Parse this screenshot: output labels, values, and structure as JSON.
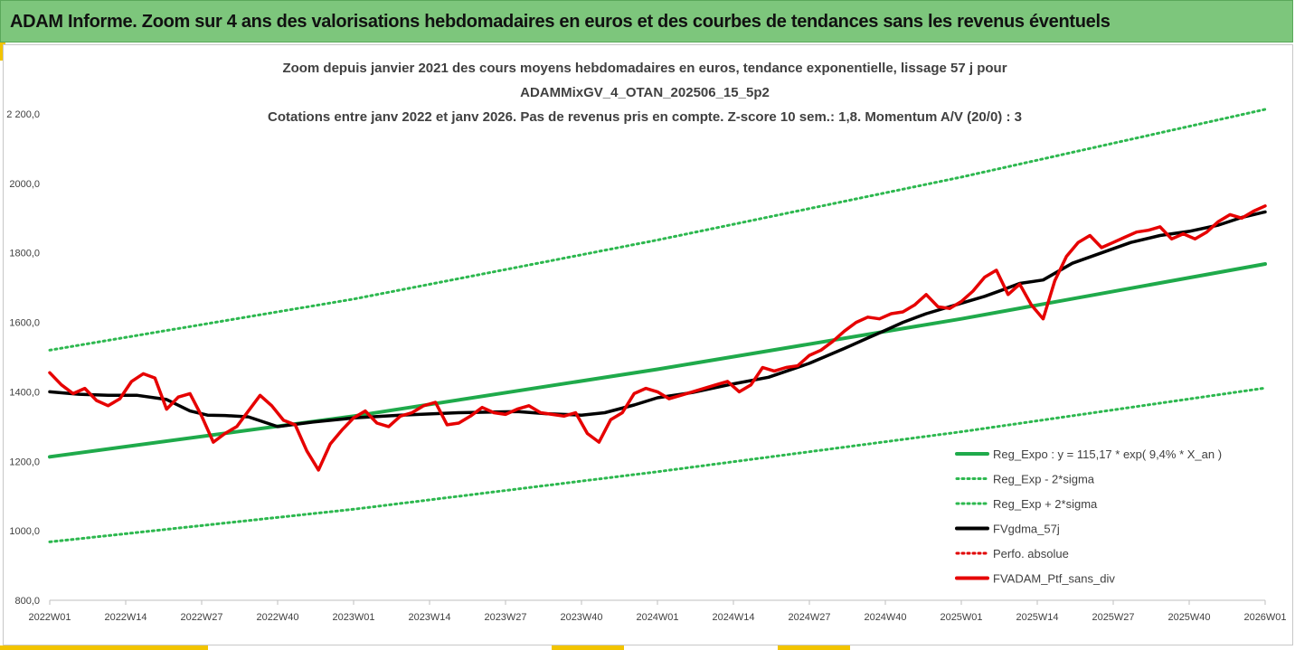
{
  "header": {
    "title": "ADAM Informe. Zoom sur 4 ans des valorisations hebdomadaires en euros et des courbes de tendances sans les revenus éventuels"
  },
  "colors": {
    "header_bg": "#7dc67c",
    "accent": "#f2c400",
    "reg_expo": "#1faa4b",
    "bands": "#2db84f",
    "fvgdma": "#000000",
    "perfo": "#e00000",
    "ptf": "#e60000"
  },
  "chart_data": {
    "type": "line",
    "title_lines": [
      "Zoom depuis janvier 2021 des cours moyens hebdomadaires  en euros, tendance exponentielle, lissage 57 j pour",
      "ADAMMixGV_4_OTAN_202506_15_5p2",
      "Cotations entre janv 2022 et janv 2026. Pas de revenus pris en compte. Z-score 10 sem.: 1,8. Momentum A/V (20/0) : 3"
    ],
    "xlabel": "",
    "ylabel": "",
    "ylim": [
      800,
      2200
    ],
    "yticks": [
      800,
      1000,
      1200,
      1400,
      1600,
      1800,
      2000,
      2200
    ],
    "ytick_labels": [
      "800,0",
      "1000,0",
      "1200,0",
      "1400,0",
      "1600,0",
      "1800,0",
      "2000,0",
      "2 200,0"
    ],
    "xlim": [
      0,
      208
    ],
    "xticks": [
      0,
      13,
      26,
      39,
      52,
      65,
      78,
      91,
      104,
      117,
      130,
      143,
      156,
      169,
      182,
      195,
      208
    ],
    "xtick_labels": [
      "2022W01",
      "2022W14",
      "2022W27",
      "2022W40",
      "2023W01",
      "2023W14",
      "2023W27",
      "2023W40",
      "2024W01",
      "2024W14",
      "2024W27",
      "2024W40",
      "2025W01",
      "2025W14",
      "2025W27",
      "2025W40",
      "2026W01"
    ],
    "legend_position": "bottom-right",
    "series": [
      {
        "name": "Reg_Expo : y = 115,17 * exp( 9,4% *  X_an )",
        "style": "solid-thick",
        "x": [
          0,
          52,
          104,
          156,
          208
        ],
        "values": [
          1213,
          1330,
          1465,
          1610,
          1768
        ]
      },
      {
        "name": "Reg_Exp - 2*sigma",
        "style": "dotted",
        "x": [
          0,
          52,
          104,
          156,
          208
        ],
        "values": [
          968,
          1062,
          1170,
          1285,
          1411
        ]
      },
      {
        "name": "Reg_Exp + 2*sigma",
        "style": "dotted",
        "x": [
          0,
          52,
          104,
          156,
          208
        ],
        "values": [
          1520,
          1667,
          1837,
          2018,
          2213
        ]
      },
      {
        "name": "FVgdma_57j",
        "style": "solid-thick",
        "x": [
          0,
          5,
          10,
          15,
          20,
          24,
          27,
          30,
          34,
          39,
          45,
          52,
          60,
          70,
          80,
          85,
          91,
          95,
          100,
          104,
          110,
          117,
          123,
          130,
          136,
          140,
          143,
          146,
          150,
          156,
          160,
          163,
          166,
          170,
          175,
          180,
          185,
          190,
          195,
          200,
          204,
          208
        ],
        "values": [
          1400,
          1393,
          1390,
          1390,
          1378,
          1345,
          1333,
          1332,
          1328,
          1300,
          1313,
          1325,
          1333,
          1340,
          1343,
          1337,
          1333,
          1340,
          1362,
          1383,
          1398,
          1423,
          1442,
          1482,
          1525,
          1555,
          1577,
          1600,
          1625,
          1655,
          1675,
          1693,
          1712,
          1722,
          1770,
          1800,
          1830,
          1850,
          1862,
          1880,
          1902,
          1918
        ]
      },
      {
        "name": "Perfo. absolue",
        "style": "dotted",
        "x": [],
        "values": []
      },
      {
        "name": "FVADAM_Ptf_sans_div",
        "style": "solid-thick",
        "x": [
          0,
          2,
          4,
          6,
          8,
          10,
          12,
          14,
          16,
          18,
          20,
          22,
          24,
          26,
          28,
          30,
          32,
          34,
          36,
          38,
          40,
          42,
          44,
          46,
          48,
          50,
          52,
          54,
          56,
          58,
          60,
          62,
          64,
          66,
          68,
          70,
          72,
          74,
          76,
          78,
          80,
          82,
          84,
          86,
          88,
          90,
          92,
          94,
          96,
          98,
          100,
          102,
          104,
          106,
          108,
          110,
          112,
          114,
          116,
          118,
          120,
          122,
          124,
          126,
          128,
          130,
          132,
          134,
          136,
          138,
          140,
          142,
          144,
          146,
          148,
          150,
          152,
          154,
          156,
          158,
          160,
          162,
          164,
          166,
          168,
          170,
          172,
          174,
          176,
          178,
          180,
          182,
          184,
          186,
          188,
          190,
          192,
          194,
          196,
          198,
          200,
          202,
          204,
          206,
          208
        ],
        "values": [
          1455,
          1420,
          1395,
          1410,
          1375,
          1360,
          1380,
          1430,
          1452,
          1440,
          1350,
          1385,
          1395,
          1330,
          1255,
          1280,
          1300,
          1345,
          1390,
          1360,
          1318,
          1305,
          1230,
          1175,
          1250,
          1290,
          1325,
          1345,
          1310,
          1300,
          1330,
          1340,
          1360,
          1370,
          1305,
          1310,
          1330,
          1355,
          1340,
          1335,
          1350,
          1360,
          1340,
          1335,
          1330,
          1340,
          1280,
          1255,
          1320,
          1340,
          1395,
          1410,
          1400,
          1380,
          1390,
          1400,
          1410,
          1420,
          1430,
          1400,
          1420,
          1470,
          1460,
          1470,
          1475,
          1505,
          1520,
          1545,
          1575,
          1600,
          1615,
          1610,
          1625,
          1630,
          1650,
          1680,
          1645,
          1640,
          1660,
          1690,
          1730,
          1750,
          1680,
          1710,
          1650,
          1610,
          1720,
          1790,
          1830,
          1850,
          1815,
          1830,
          1845,
          1860,
          1865,
          1875,
          1840,
          1855,
          1840,
          1860,
          1890,
          1910,
          1900,
          1920,
          1935
        ]
      }
    ]
  },
  "legend": {
    "items": [
      {
        "label": "Reg_Expo : y = 115,17 * exp( 9,4% *  X_an )",
        "style": "solid",
        "color": "#1faa4b"
      },
      {
        "label": "Reg_Exp - 2*sigma",
        "style": "dotted",
        "color": "#2db84f"
      },
      {
        "label": "Reg_Exp + 2*sigma",
        "style": "dotted",
        "color": "#2db84f"
      },
      {
        "label": "FVgdma_57j",
        "style": "solid",
        "color": "#000000"
      },
      {
        "label": "Perfo. absolue",
        "style": "dotted",
        "color": "#e00000"
      },
      {
        "label": "FVADAM_Ptf_sans_div",
        "style": "solid",
        "color": "#e60000"
      }
    ]
  }
}
